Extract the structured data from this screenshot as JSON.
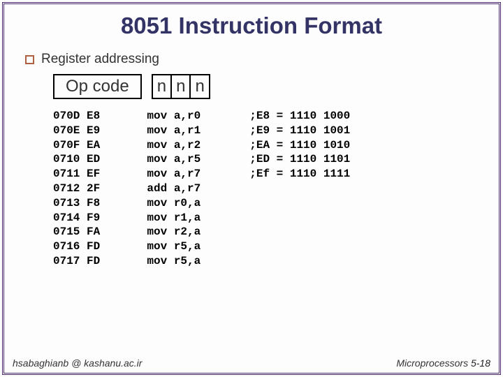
{
  "title": "8051 Instruction Format",
  "bullet_text": "Register addressing",
  "opcode_label": "Op code",
  "n_labels": [
    "n",
    "n",
    "n"
  ],
  "asm_lines": [
    "070D E8       mov a,r0",
    "070E E9       mov a,r1",
    "070F EA       mov a,r2",
    "0710 ED       mov a,r5",
    "0711 EF       mov a,r7",
    "0712 2F       add a,r7",
    "0713 F8       mov r0,a",
    "0714 F9       mov r1,a",
    "0715 FA       mov r2,a",
    "0716 FD       mov r5,a",
    "0717 FD       mov r5,a"
  ],
  "enc_lines": [
    ";E8 = 1110 1000",
    ";E9 = 1110 1001",
    ";EA = 1110 1010",
    ";ED = 1110 1101",
    ";Ef = 1110 1111"
  ],
  "footer_left": "hsabaghianb @ kashanu.ac.ir",
  "footer_right_label": "Microprocessors ",
  "footer_page": "5-18",
  "colors": {
    "border": "#4b2a6b",
    "title": "#333366",
    "bullet_border": "#b06040"
  }
}
